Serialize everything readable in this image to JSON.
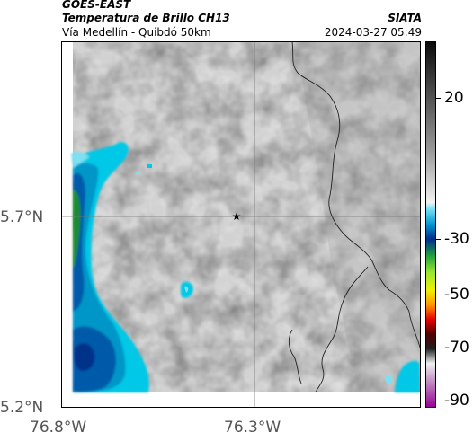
{
  "header": {
    "satellite": "GOES-EAST",
    "product": "Temperatura de Brillo CH13",
    "location": "Vía Medellín - Quibdó 50km",
    "agency": "SIATA",
    "timestamp": "2024-03-27 05:49"
  },
  "map": {
    "lat_labels": [
      "5.7°N",
      "5.2°N"
    ],
    "lon_labels": [
      "76.8°W",
      "76.3°W"
    ],
    "marker_icon": "star-icon",
    "background_color": "#d4d4d4",
    "cold_cloud_colors": [
      "#00c8e6",
      "#0096c8",
      "#005aaa",
      "#1e8c32",
      "#7ee0f0"
    ],
    "border_color": "#222222"
  },
  "colorbar": {
    "ticks": [
      {
        "label": "20",
        "frac": 0.155
      },
      {
        "label": "-30",
        "frac": 0.54
      },
      {
        "label": "-50",
        "frac": 0.69
      },
      {
        "label": "-70",
        "frac": 0.835
      },
      {
        "label": "-90",
        "frac": 0.98
      }
    ],
    "stops": [
      {
        "frac": 0.0,
        "color": "#0a0a0a"
      },
      {
        "frac": 0.1,
        "color": "#3a3a3a"
      },
      {
        "frac": 0.3,
        "color": "#9a9a9a"
      },
      {
        "frac": 0.44,
        "color": "#f2f2f2"
      },
      {
        "frac": 0.455,
        "color": "#7fe6f5"
      },
      {
        "frac": 0.5,
        "color": "#0096d0"
      },
      {
        "frac": 0.54,
        "color": "#002c8c"
      },
      {
        "frac": 0.585,
        "color": "#1ea03c"
      },
      {
        "frac": 0.63,
        "color": "#96e632"
      },
      {
        "frac": 0.68,
        "color": "#f0f000"
      },
      {
        "frac": 0.72,
        "color": "#ff9600"
      },
      {
        "frac": 0.76,
        "color": "#e60000"
      },
      {
        "frac": 0.8,
        "color": "#500000"
      },
      {
        "frac": 0.84,
        "color": "#202020"
      },
      {
        "frac": 0.88,
        "color": "#f0f0f0"
      },
      {
        "frac": 0.92,
        "color": "#c8a0c8"
      },
      {
        "frac": 1.0,
        "color": "#960096"
      }
    ]
  }
}
